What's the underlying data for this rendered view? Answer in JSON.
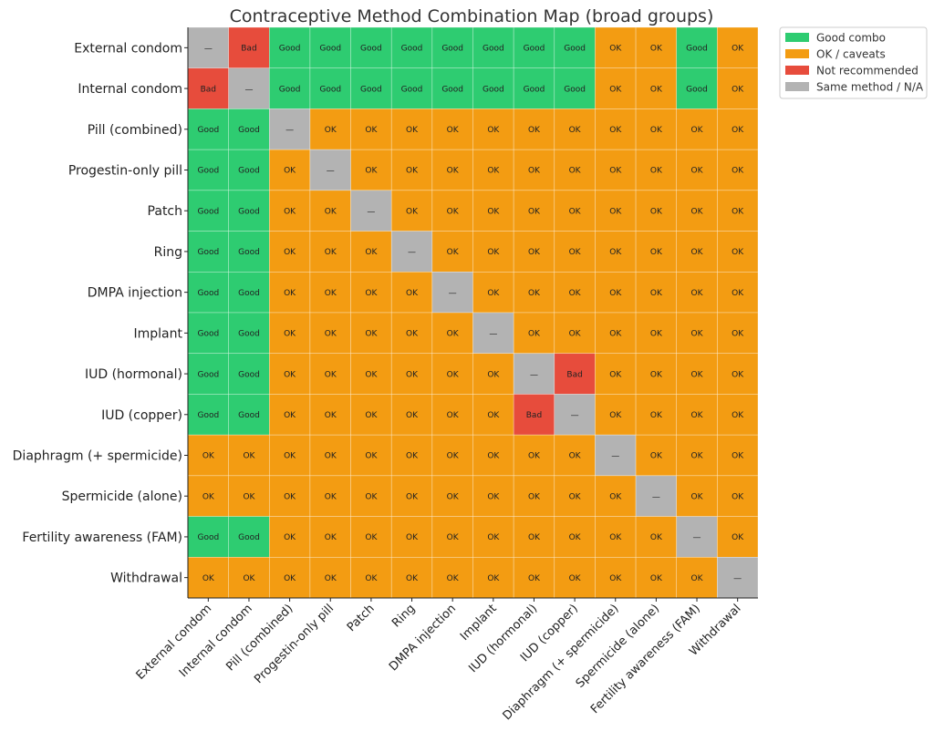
{
  "chart_data": {
    "type": "heatmap",
    "title": "Contraceptive Method Combination Map (broad groups)",
    "xlabel": "",
    "ylabel": "",
    "categories": [
      "External condom",
      "Internal condom",
      "Pill (combined)",
      "Progestin-only pill",
      "Patch",
      "Ring",
      "DMPA injection",
      "Implant",
      "IUD (hormonal)",
      "IUD (copper)",
      "Diaphragm (+ spermicide)",
      "Spermicide (alone)",
      "Fertility awareness (FAM)",
      "Withdrawal"
    ],
    "values": [
      [
        "—",
        "Bad",
        "Good",
        "Good",
        "Good",
        "Good",
        "Good",
        "Good",
        "Good",
        "Good",
        "OK",
        "OK",
        "Good",
        "OK"
      ],
      [
        "Bad",
        "—",
        "Good",
        "Good",
        "Good",
        "Good",
        "Good",
        "Good",
        "Good",
        "Good",
        "OK",
        "OK",
        "Good",
        "OK"
      ],
      [
        "Good",
        "Good",
        "—",
        "OK",
        "OK",
        "OK",
        "OK",
        "OK",
        "OK",
        "OK",
        "OK",
        "OK",
        "OK",
        "OK"
      ],
      [
        "Good",
        "Good",
        "OK",
        "—",
        "OK",
        "OK",
        "OK",
        "OK",
        "OK",
        "OK",
        "OK",
        "OK",
        "OK",
        "OK"
      ],
      [
        "Good",
        "Good",
        "OK",
        "OK",
        "—",
        "OK",
        "OK",
        "OK",
        "OK",
        "OK",
        "OK",
        "OK",
        "OK",
        "OK"
      ],
      [
        "Good",
        "Good",
        "OK",
        "OK",
        "OK",
        "—",
        "OK",
        "OK",
        "OK",
        "OK",
        "OK",
        "OK",
        "OK",
        "OK"
      ],
      [
        "Good",
        "Good",
        "OK",
        "OK",
        "OK",
        "OK",
        "—",
        "OK",
        "OK",
        "OK",
        "OK",
        "OK",
        "OK",
        "OK"
      ],
      [
        "Good",
        "Good",
        "OK",
        "OK",
        "OK",
        "OK",
        "OK",
        "—",
        "OK",
        "OK",
        "OK",
        "OK",
        "OK",
        "OK"
      ],
      [
        "Good",
        "Good",
        "OK",
        "OK",
        "OK",
        "OK",
        "OK",
        "OK",
        "—",
        "Bad",
        "OK",
        "OK",
        "OK",
        "OK"
      ],
      [
        "Good",
        "Good",
        "OK",
        "OK",
        "OK",
        "OK",
        "OK",
        "OK",
        "Bad",
        "—",
        "OK",
        "OK",
        "OK",
        "OK"
      ],
      [
        "OK",
        "OK",
        "OK",
        "OK",
        "OK",
        "OK",
        "OK",
        "OK",
        "OK",
        "OK",
        "—",
        "OK",
        "OK",
        "OK"
      ],
      [
        "OK",
        "OK",
        "OK",
        "OK",
        "OK",
        "OK",
        "OK",
        "OK",
        "OK",
        "OK",
        "OK",
        "—",
        "OK",
        "OK"
      ],
      [
        "Good",
        "Good",
        "OK",
        "OK",
        "OK",
        "OK",
        "OK",
        "OK",
        "OK",
        "OK",
        "OK",
        "OK",
        "—",
        "OK"
      ],
      [
        "OK",
        "OK",
        "OK",
        "OK",
        "OK",
        "OK",
        "OK",
        "OK",
        "OK",
        "OK",
        "OK",
        "OK",
        "OK",
        "—"
      ]
    ],
    "legend": [
      {
        "label": "Good combo",
        "key": "Good",
        "color": "#2ecc71"
      },
      {
        "label": "OK / caveats",
        "key": "OK",
        "color": "#f39c12"
      },
      {
        "label": "Not recommended",
        "key": "Bad",
        "color": "#e74c3c"
      },
      {
        "label": "Same method / N/A",
        "key": "—",
        "color": "#b3b3b3"
      }
    ],
    "legend_position": "top-right outside",
    "grid": true
  }
}
